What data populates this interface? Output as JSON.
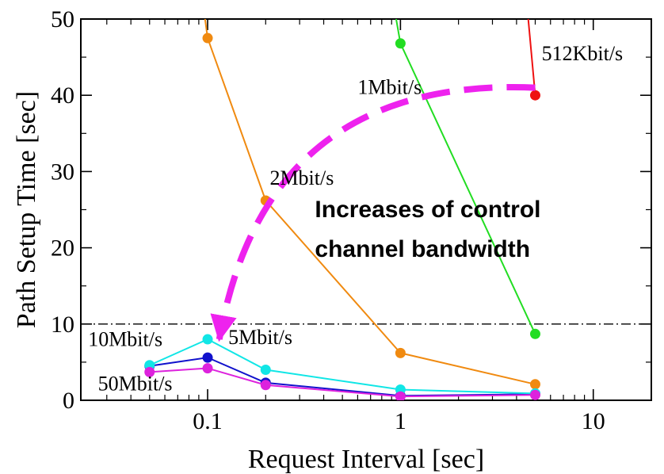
{
  "chart_data": {
    "type": "line",
    "xlabel": "Request Interval [sec]",
    "ylabel": "Path Setup Time [sec]",
    "x_scale": "log",
    "xlim": [
      0.022,
      20
    ],
    "ylim": [
      0,
      50
    ],
    "x_ticks": [
      {
        "value": 0.1,
        "label": "0.1"
      },
      {
        "value": 1,
        "label": "1"
      },
      {
        "value": 10,
        "label": "10"
      }
    ],
    "y_ticks": [
      {
        "value": 0,
        "label": "0"
      },
      {
        "value": 10,
        "label": "10"
      },
      {
        "value": 20,
        "label": "20"
      },
      {
        "value": 30,
        "label": "30"
      },
      {
        "value": 40,
        "label": "40"
      },
      {
        "value": 50,
        "label": "50"
      }
    ],
    "grid": false,
    "reference_line": {
      "y": 10,
      "style": "dash-dot",
      "color": "#000000"
    },
    "series": [
      {
        "name": "512Kbit/s",
        "color": "#ee1111",
        "points": [
          [
            5,
            40
          ]
        ],
        "segment_from_above": [
          4.6,
          50
        ]
      },
      {
        "name": "1Mbit/s",
        "color": "#22dd22",
        "points": [
          [
            1,
            46.8
          ],
          [
            5,
            8.7
          ]
        ],
        "segment_from_above": [
          0.95,
          50
        ]
      },
      {
        "name": "2Mbit/s",
        "color": "#f08a10",
        "points": [
          [
            0.1,
            47.5
          ],
          [
            0.2,
            26.2
          ],
          [
            1,
            6.2
          ],
          [
            5,
            2.1
          ]
        ],
        "segment_from_above": [
          0.097,
          50
        ]
      },
      {
        "name": "5Mbit/s",
        "color": "#1111cc",
        "points": [
          [
            0.05,
            4.5
          ],
          [
            0.1,
            5.6
          ],
          [
            0.2,
            2.3
          ],
          [
            1,
            0.6
          ],
          [
            5,
            0.8
          ]
        ]
      },
      {
        "name": "10Mbit/s",
        "color": "#11e6e6",
        "points": [
          [
            0.05,
            4.6
          ],
          [
            0.1,
            8.0
          ],
          [
            0.2,
            4.0
          ],
          [
            1,
            1.4
          ],
          [
            5,
            0.9
          ]
        ]
      },
      {
        "name": "50Mbit/s",
        "color": "#dd22dd",
        "points": [
          [
            0.05,
            3.7
          ],
          [
            0.1,
            4.2
          ],
          [
            0.2,
            2.0
          ],
          [
            1,
            0.5
          ],
          [
            5,
            0.7
          ]
        ]
      }
    ],
    "series_labels": [
      {
        "text": "512Kbit/s",
        "x": 5.4,
        "y": 44.6
      },
      {
        "text": "1Mbit/s",
        "x": 0.6,
        "y": 40.2
      },
      {
        "text": "2Mbit/s",
        "x": 0.21,
        "y": 28.3
      },
      {
        "text": "5Mbit/s",
        "x": 0.128,
        "y": 7.4
      },
      {
        "text": "10Mbit/s",
        "x": 0.024,
        "y": 7.1
      },
      {
        "text": "50Mbit/s",
        "x": 0.027,
        "y": 1.3
      }
    ],
    "annotation": {
      "lines": [
        "Increases of control",
        "channel bandwidth"
      ],
      "x": 0.36,
      "y": 24.0,
      "line_gap": 5.2
    },
    "arrow": {
      "color": "#ee22ee",
      "from": [
        5,
        41.0
      ],
      "control": [
        0.2,
        42.5
      ],
      "to": [
        0.115,
        8.0
      ]
    }
  }
}
